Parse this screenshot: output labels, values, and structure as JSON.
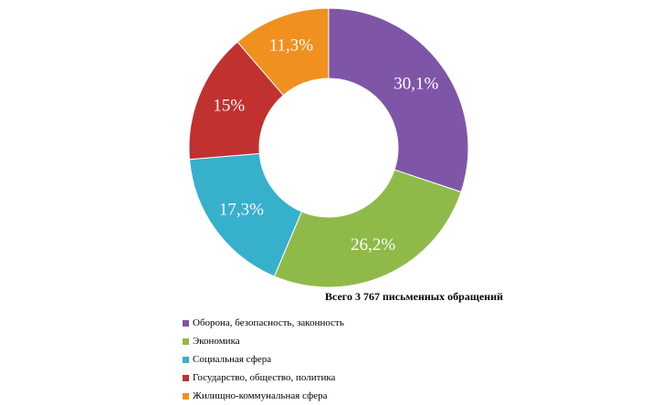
{
  "chart_data": {
    "type": "pie",
    "style": "donut",
    "title": "Всего 3 767 письменных обращений",
    "categories": [
      "Оборона, безопасность, законность",
      "Экономика",
      "Социальная сфера",
      "Государство, общество, политика",
      "Жилищно-коммунальная сфера"
    ],
    "values": [
      30.1,
      26.2,
      17.3,
      15,
      11.3
    ],
    "value_labels": [
      "30,1%",
      "26,2%",
      "17,3%",
      "15%",
      "11,3%"
    ],
    "colors": [
      "#7f55a8",
      "#8fba4a",
      "#37b0cc",
      "#c0312f",
      "#f0901f"
    ],
    "start_angle": "12 o'clock",
    "direction": "clockwise",
    "legend_position": "bottom-left"
  }
}
